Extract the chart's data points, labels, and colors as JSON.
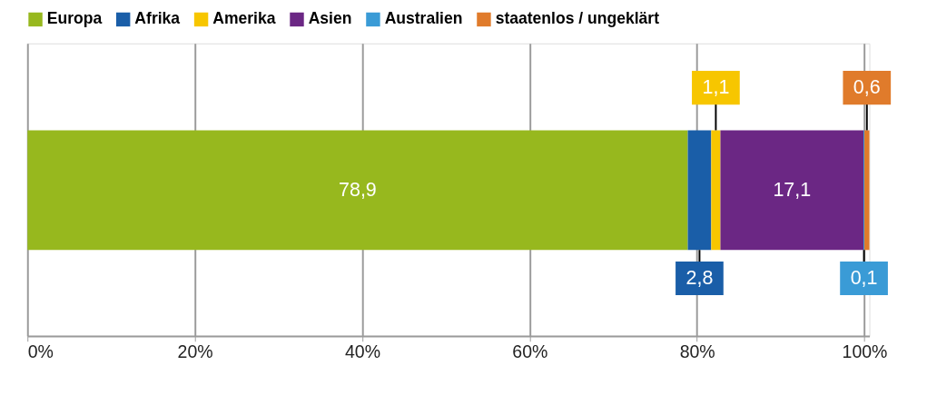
{
  "chart_data": {
    "type": "bar",
    "orientation": "horizontal",
    "stacked": true,
    "categories": [
      null
    ],
    "series": [
      {
        "name": "Europa",
        "color": "#97b81e",
        "values": [
          78.9
        ],
        "value_labels": [
          "78,9"
        ]
      },
      {
        "name": "Afrika",
        "color": "#1a5ea8",
        "values": [
          2.8
        ],
        "value_labels": [
          "2,8"
        ]
      },
      {
        "name": "Amerika",
        "color": "#f7c600",
        "values": [
          1.1
        ],
        "value_labels": [
          "1,1"
        ]
      },
      {
        "name": "Asien",
        "color": "#6b2784",
        "values": [
          17.1
        ],
        "value_labels": [
          "17,1"
        ]
      },
      {
        "name": "Australien",
        "color": "#3a9bd6",
        "values": [
          0.1
        ],
        "value_labels": [
          "0,1"
        ]
      },
      {
        "name": "staatenlos / ungeklärt",
        "color": "#e07b2b",
        "values": [
          0.6
        ],
        "value_labels": [
          "0,6"
        ]
      }
    ],
    "xlim": [
      0,
      100.6
    ],
    "xticks": [
      {
        "value": 0,
        "label": "0%"
      },
      {
        "value": 20,
        "label": "20%"
      },
      {
        "value": 40,
        "label": "40%"
      },
      {
        "value": 60,
        "label": "60%"
      },
      {
        "value": 80,
        "label": "80%"
      },
      {
        "value": 100,
        "label": "100%"
      }
    ],
    "grid": true,
    "legend": "top"
  }
}
